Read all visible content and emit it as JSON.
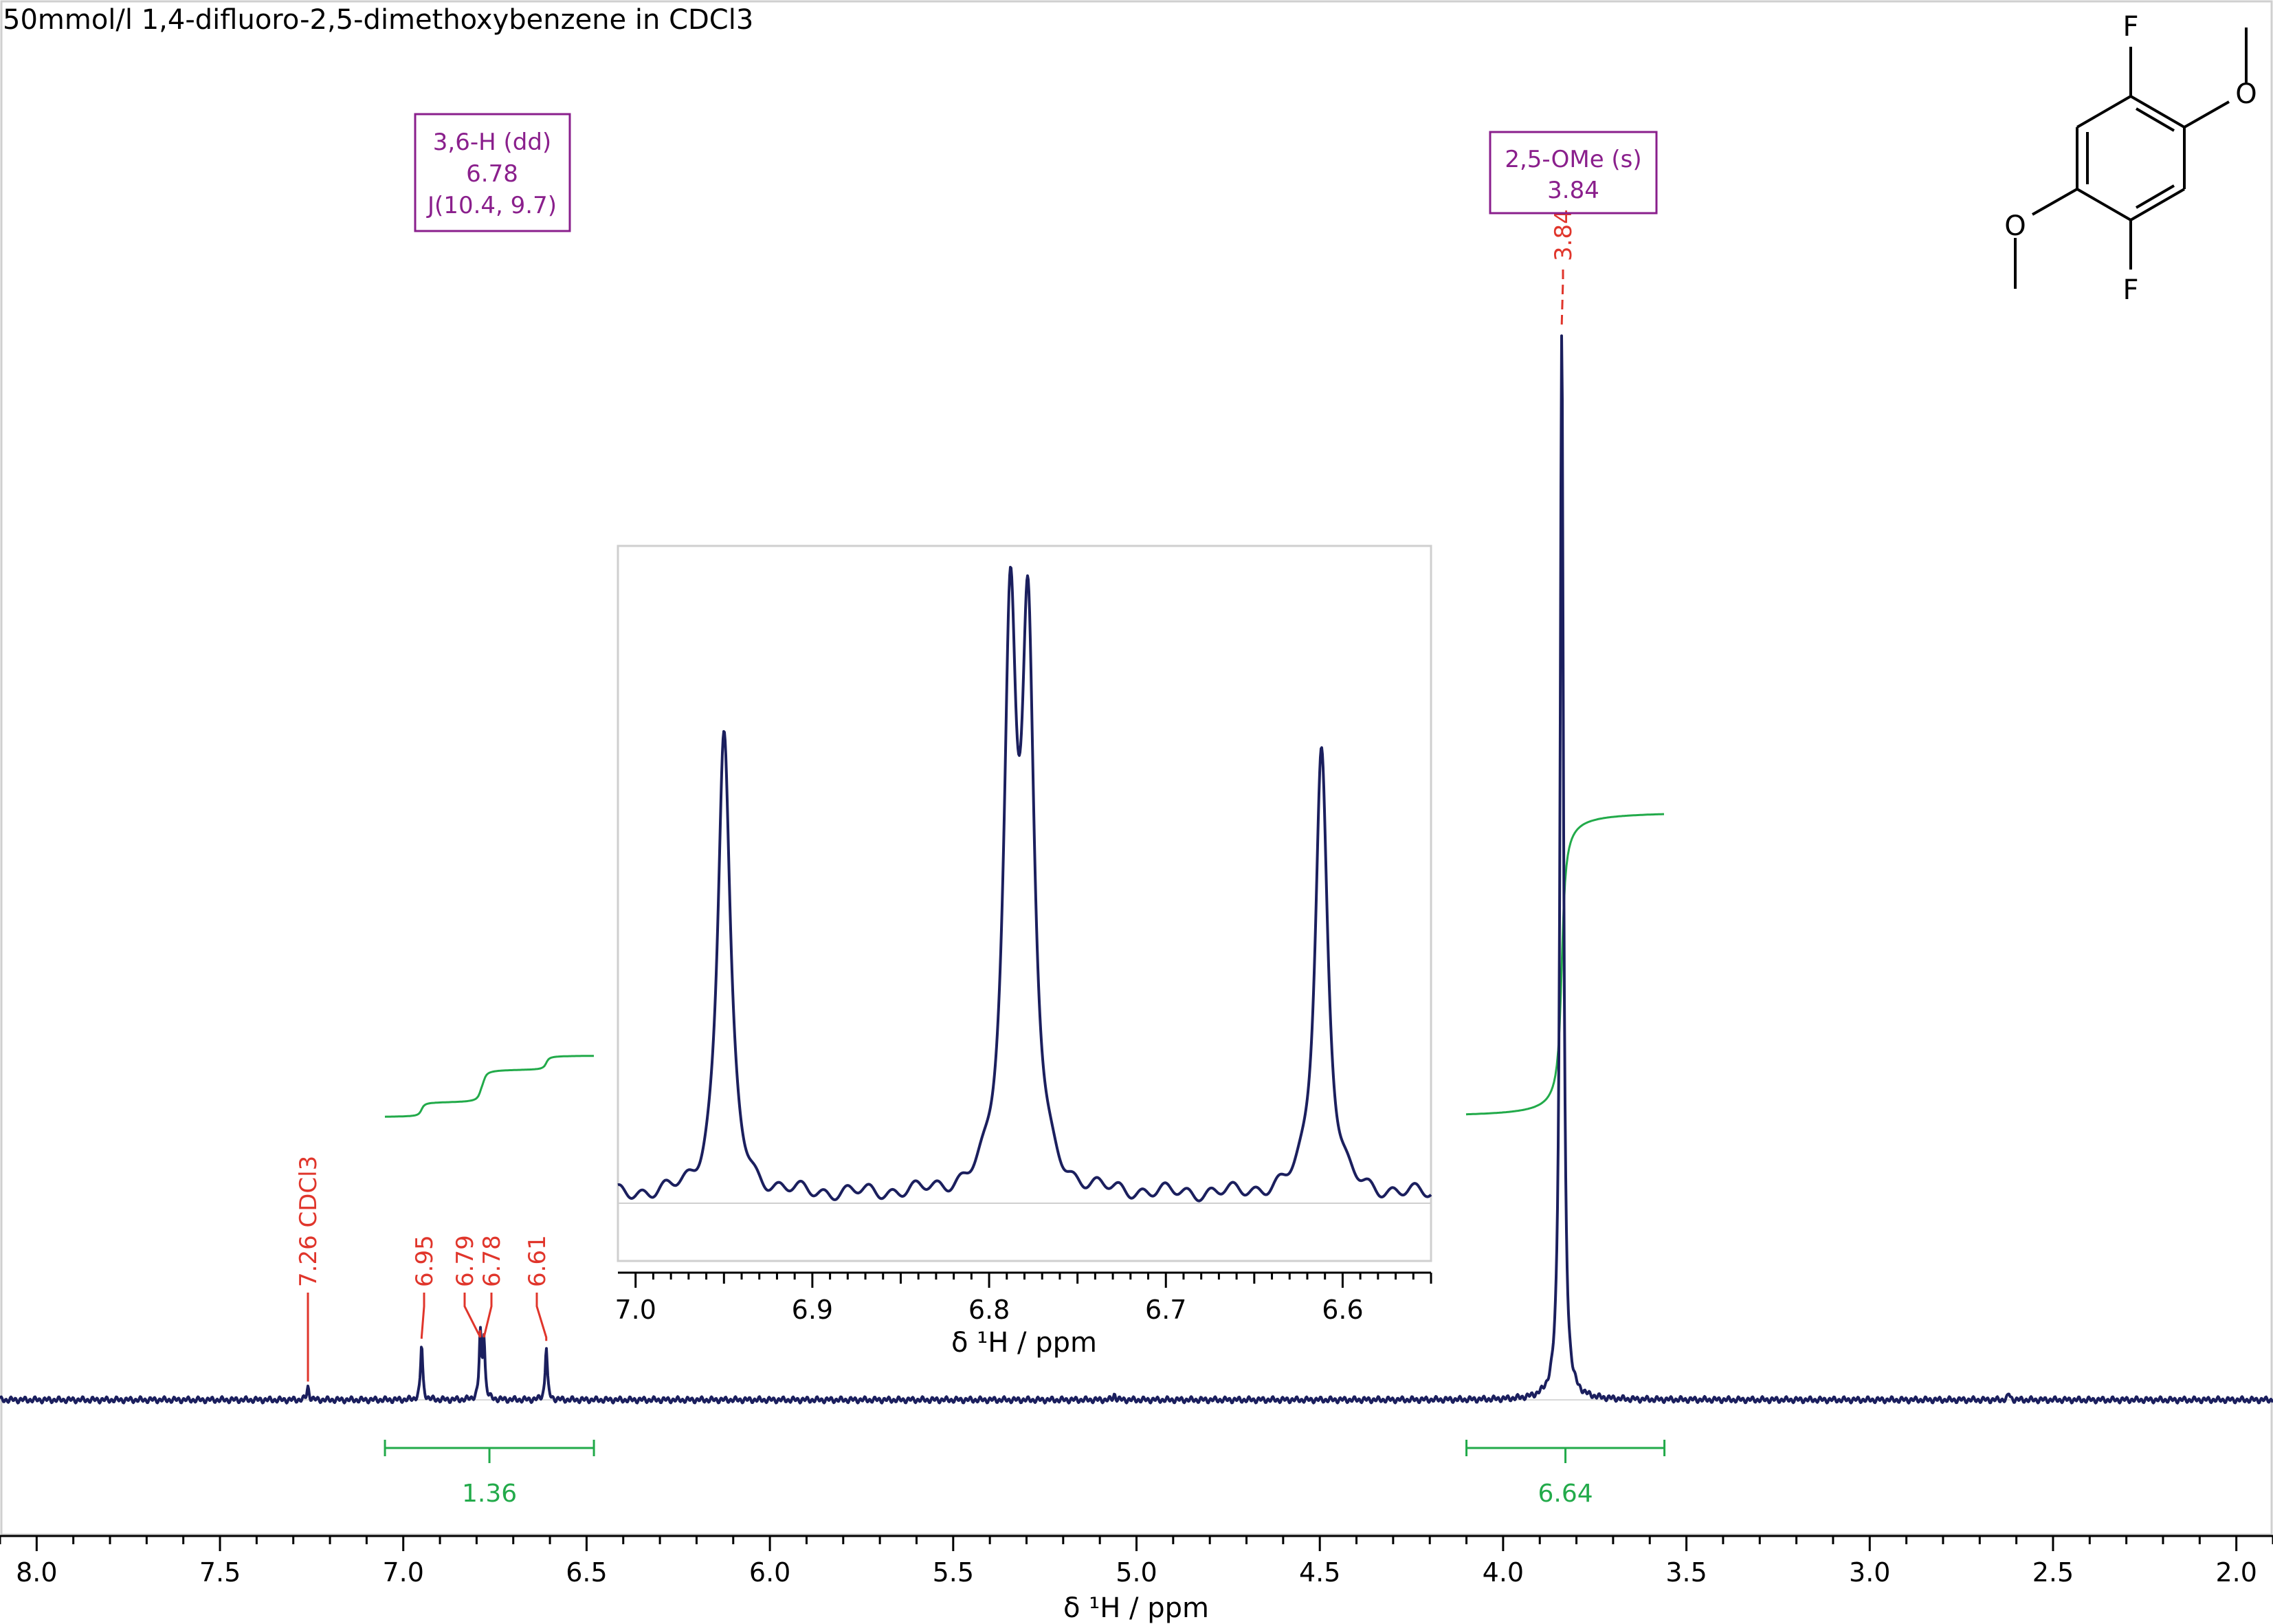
{
  "colors": {
    "spectrum": "#1b1f5e",
    "peak_label": "#e0352b",
    "integral": "#22aa4a",
    "multiplet": "#8a1f8c",
    "axis": "#000000"
  },
  "chart_data": {
    "type": "line",
    "title": "50mmol/l 1,4-difluoro-2,5-dimethoxybenzene in CDCl3",
    "xlabel": "δ ¹H / ppm",
    "xlim": [
      8.1,
      1.9
    ],
    "x_reversed": true,
    "x_ticks": [
      "8.0",
      "7.5",
      "7.0",
      "6.5",
      "6.0",
      "5.5",
      "5.0",
      "4.5",
      "4.0",
      "3.5",
      "3.0",
      "2.5",
      "2.0"
    ],
    "peaks": [
      {
        "ppm": 7.26,
        "height": 0.012,
        "label": "7.26 CDCl3"
      },
      {
        "ppm": 6.95,
        "height": 0.052,
        "label": "6.95"
      },
      {
        "ppm": 6.79,
        "height": 0.06,
        "label": "6.79"
      },
      {
        "ppm": 6.78,
        "height": 0.057,
        "label": "6.78"
      },
      {
        "ppm": 6.61,
        "height": 0.05,
        "label": "6.61"
      },
      {
        "ppm": 3.84,
        "height": 1.0,
        "label": "3.84"
      },
      {
        "ppm": 5.06,
        "height": 0.005,
        "label": ""
      },
      {
        "ppm": 2.62,
        "height": 0.006,
        "label": ""
      }
    ],
    "integrals": [
      {
        "from": 7.05,
        "to": 6.48,
        "value": "1.36"
      },
      {
        "from": 4.1,
        "to": 3.56,
        "value": "6.64"
      }
    ],
    "multiplets": [
      {
        "lines": [
          "3,6-H (dd)",
          "6.78",
          "J(10.4, 9.7)"
        ]
      },
      {
        "lines": [
          "2,5-OMe (s)",
          "3.84"
        ]
      }
    ],
    "inset": {
      "xlim": [
        7.01,
        6.55
      ],
      "xlabel": "δ ¹H / ppm",
      "x_ticks": [
        "7.0",
        "6.9",
        "6.8",
        "6.7",
        "6.6"
      ],
      "peaks": [
        {
          "ppm": 6.95,
          "height": 0.73
        },
        {
          "ppm": 6.788,
          "height": 0.86
        },
        {
          "ppm": 6.778,
          "height": 0.83
        },
        {
          "ppm": 6.612,
          "height": 0.7
        }
      ]
    }
  },
  "structure": {
    "atom_labels": [
      "F",
      "F",
      "O",
      "O"
    ]
  }
}
